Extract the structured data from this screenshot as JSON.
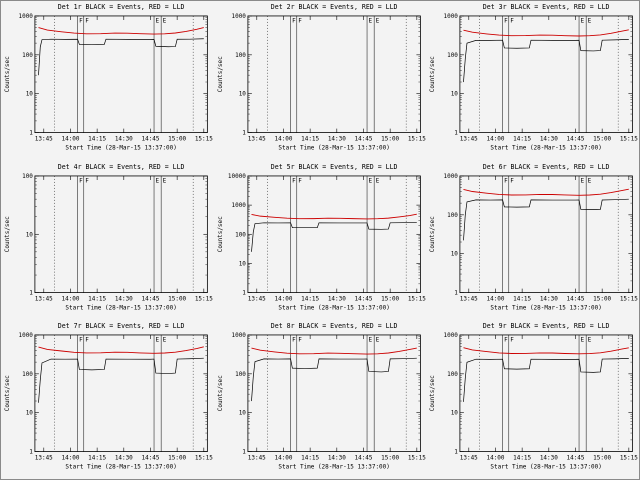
{
  "window": {
    "background": "#f3f3f3",
    "border": "#8a8a8a"
  },
  "colors": {
    "events": "#000000",
    "lld": "#cc0000",
    "axis": "#000000",
    "text": "#000000"
  },
  "chart_data": {
    "type": "line",
    "grid": [
      3,
      3
    ],
    "legend_note": "BLACK = Events, RED = LLD",
    "xlabel": "Start Time (28-Mar-15 13:37:00)",
    "ylabel": "Counts/sec",
    "xlim": [
      3,
      100
    ],
    "x_ticks": [
      {
        "m": 8,
        "l": "13:45"
      },
      {
        "m": 23,
        "l": "14:00"
      },
      {
        "m": 38,
        "l": "14:15"
      },
      {
        "m": 53,
        "l": "14:30"
      },
      {
        "m": 68,
        "l": "14:45"
      },
      {
        "m": 83,
        "l": "15:00"
      },
      {
        "m": 98,
        "l": "15:15"
      }
    ],
    "marker_lines": [
      {
        "m": 14,
        "style": "dotted",
        "label": ""
      },
      {
        "m": 27,
        "style": "solid",
        "label": "F"
      },
      {
        "m": 30.5,
        "style": "solid",
        "label": "F"
      },
      {
        "m": 70,
        "style": "solid",
        "label": "E"
      },
      {
        "m": 74,
        "style": "solid",
        "label": "E"
      },
      {
        "m": 92,
        "style": "dotted",
        "label": ""
      }
    ],
    "panels": [
      {
        "id": "det-1r",
        "title": "Det 1r BLACK = Events, RED = LLD",
        "ylim": [
          1,
          1000
        ],
        "yticks": [
          1,
          10,
          100,
          1000
        ],
        "events": [
          [
            5,
            30
          ],
          [
            6,
            160
          ],
          [
            7,
            245
          ],
          [
            12,
            252
          ],
          [
            20,
            249
          ],
          [
            27,
            251
          ],
          [
            28,
            186
          ],
          [
            35,
            184
          ],
          [
            42,
            186
          ],
          [
            43,
            252
          ],
          [
            55,
            250
          ],
          [
            68,
            248
          ],
          [
            70,
            250
          ],
          [
            71,
            166
          ],
          [
            78,
            161
          ],
          [
            82,
            163
          ],
          [
            83,
            251
          ],
          [
            90,
            253
          ],
          [
            98,
            259
          ]
        ],
        "lld": [
          [
            5,
            500
          ],
          [
            10,
            432
          ],
          [
            18,
            392
          ],
          [
            25,
            362
          ],
          [
            32,
            348
          ],
          [
            40,
            350
          ],
          [
            48,
            363
          ],
          [
            55,
            360
          ],
          [
            62,
            349
          ],
          [
            70,
            341
          ],
          [
            76,
            347
          ],
          [
            82,
            364
          ],
          [
            88,
            400
          ],
          [
            94,
            452
          ],
          [
            98,
            500
          ]
        ]
      },
      {
        "id": "det-2r",
        "title": "Det 2r BLACK = Events, RED = LLD",
        "ylim": [
          1,
          1000
        ],
        "yticks": [
          1,
          10,
          100,
          1000
        ],
        "events": [],
        "lld": []
      },
      {
        "id": "det-3r",
        "title": "Det 3r BLACK = Events, RED = LLD",
        "ylim": [
          1,
          1000
        ],
        "yticks": [
          1,
          10,
          100,
          1000
        ],
        "events": [
          [
            5,
            20
          ],
          [
            6,
            80
          ],
          [
            7,
            200
          ],
          [
            12,
            235
          ],
          [
            20,
            236
          ],
          [
            27,
            238
          ],
          [
            28,
            150
          ],
          [
            35,
            148
          ],
          [
            42,
            150
          ],
          [
            43,
            238
          ],
          [
            55,
            236
          ],
          [
            68,
            235
          ],
          [
            70,
            237
          ],
          [
            71,
            128
          ],
          [
            78,
            126
          ],
          [
            82,
            129
          ],
          [
            83,
            238
          ],
          [
            90,
            242
          ],
          [
            98,
            250
          ]
        ],
        "lld": [
          [
            5,
            430
          ],
          [
            10,
            382
          ],
          [
            18,
            345
          ],
          [
            25,
            322
          ],
          [
            32,
            310
          ],
          [
            40,
            312
          ],
          [
            48,
            322
          ],
          [
            55,
            320
          ],
          [
            62,
            311
          ],
          [
            70,
            305
          ],
          [
            76,
            310
          ],
          [
            82,
            326
          ],
          [
            88,
            358
          ],
          [
            94,
            405
          ],
          [
            98,
            440
          ]
        ]
      },
      {
        "id": "det-4r",
        "title": "Det 4r BLACK = Events, RED = LLD",
        "ylim": [
          1,
          100
        ],
        "yticks": [
          1,
          10,
          100
        ],
        "events": [],
        "lld": []
      },
      {
        "id": "det-5r",
        "title": "Det 5r BLACK = Events, RED = LLD",
        "ylim": [
          1,
          10000
        ],
        "yticks": [
          1,
          10,
          100,
          1000,
          10000
        ],
        "events": [
          [
            5,
            25
          ],
          [
            6,
            120
          ],
          [
            7,
            230
          ],
          [
            12,
            248
          ],
          [
            20,
            246
          ],
          [
            27,
            247
          ],
          [
            28,
            170
          ],
          [
            35,
            168
          ],
          [
            42,
            170
          ],
          [
            43,
            248
          ],
          [
            55,
            246
          ],
          [
            68,
            245
          ],
          [
            70,
            246
          ],
          [
            71,
            150
          ],
          [
            78,
            148
          ],
          [
            82,
            150
          ],
          [
            83,
            247
          ],
          [
            90,
            250
          ],
          [
            98,
            256
          ]
        ],
        "lld": [
          [
            5,
            480
          ],
          [
            10,
            420
          ],
          [
            18,
            382
          ],
          [
            25,
            355
          ],
          [
            32,
            342
          ],
          [
            40,
            344
          ],
          [
            48,
            356
          ],
          [
            55,
            353
          ],
          [
            62,
            343
          ],
          [
            70,
            336
          ],
          [
            76,
            341
          ],
          [
            82,
            357
          ],
          [
            88,
            392
          ],
          [
            94,
            440
          ],
          [
            98,
            485
          ]
        ]
      },
      {
        "id": "det-6r",
        "title": "Det 6r BLACK = Events, RED = LLD",
        "ylim": [
          1,
          1000
        ],
        "yticks": [
          1,
          10,
          100,
          1000
        ],
        "events": [
          [
            5,
            22
          ],
          [
            6,
            100
          ],
          [
            7,
            215
          ],
          [
            12,
            242
          ],
          [
            20,
            240
          ],
          [
            27,
            242
          ],
          [
            28,
            160
          ],
          [
            35,
            158
          ],
          [
            42,
            160
          ],
          [
            43,
            242
          ],
          [
            55,
            240
          ],
          [
            68,
            239
          ],
          [
            70,
            241
          ],
          [
            71,
            138
          ],
          [
            78,
            136
          ],
          [
            82,
            138
          ],
          [
            83,
            241
          ],
          [
            90,
            245
          ],
          [
            98,
            252
          ]
        ],
        "lld": [
          [
            5,
            450
          ],
          [
            10,
            398
          ],
          [
            18,
            360
          ],
          [
            25,
            336
          ],
          [
            32,
            324
          ],
          [
            40,
            326
          ],
          [
            48,
            336
          ],
          [
            55,
            334
          ],
          [
            62,
            325
          ],
          [
            70,
            318
          ],
          [
            76,
            323
          ],
          [
            82,
            339
          ],
          [
            88,
            372
          ],
          [
            94,
            420
          ],
          [
            98,
            455
          ]
        ]
      },
      {
        "id": "det-7r",
        "title": "Det 7r BLACK = Events, RED = LLD",
        "ylim": [
          1,
          1000
        ],
        "yticks": [
          1,
          10,
          100,
          1000
        ],
        "events": [
          [
            5,
            18
          ],
          [
            6,
            70
          ],
          [
            7,
            190
          ],
          [
            12,
            240
          ],
          [
            20,
            238
          ],
          [
            27,
            240
          ],
          [
            28,
            130
          ],
          [
            35,
            127
          ],
          [
            42,
            130
          ],
          [
            43,
            240
          ],
          [
            55,
            238
          ],
          [
            68,
            237
          ],
          [
            70,
            239
          ],
          [
            71,
            105
          ],
          [
            78,
            102
          ],
          [
            82,
            105
          ],
          [
            83,
            240
          ],
          [
            90,
            244
          ],
          [
            98,
            252
          ]
        ],
        "lld": [
          [
            5,
            490
          ],
          [
            10,
            425
          ],
          [
            18,
            386
          ],
          [
            25,
            358
          ],
          [
            32,
            345
          ],
          [
            40,
            347
          ],
          [
            48,
            360
          ],
          [
            55,
            357
          ],
          [
            62,
            346
          ],
          [
            70,
            338
          ],
          [
            76,
            344
          ],
          [
            82,
            360
          ],
          [
            88,
            396
          ],
          [
            94,
            448
          ],
          [
            98,
            495
          ]
        ]
      },
      {
        "id": "det-8r",
        "title": "Det 8r BLACK = Events, RED = LLD",
        "ylim": [
          1,
          1000
        ],
        "yticks": [
          1,
          10,
          100,
          1000
        ],
        "events": [
          [
            5,
            20
          ],
          [
            6,
            85
          ],
          [
            7,
            205
          ],
          [
            12,
            242
          ],
          [
            20,
            240
          ],
          [
            27,
            242
          ],
          [
            28,
            140
          ],
          [
            35,
            137
          ],
          [
            42,
            140
          ],
          [
            43,
            242
          ],
          [
            55,
            240
          ],
          [
            68,
            239
          ],
          [
            70,
            241
          ],
          [
            71,
            115
          ],
          [
            78,
            112
          ],
          [
            82,
            115
          ],
          [
            83,
            242
          ],
          [
            90,
            246
          ],
          [
            98,
            253
          ]
        ],
        "lld": [
          [
            5,
            460
          ],
          [
            10,
            405
          ],
          [
            18,
            366
          ],
          [
            25,
            340
          ],
          [
            32,
            328
          ],
          [
            40,
            330
          ],
          [
            48,
            341
          ],
          [
            55,
            338
          ],
          [
            62,
            329
          ],
          [
            70,
            322
          ],
          [
            76,
            327
          ],
          [
            82,
            343
          ],
          [
            88,
            377
          ],
          [
            94,
            426
          ],
          [
            98,
            462
          ]
        ]
      },
      {
        "id": "det-9r",
        "title": "Det 9r BLACK = Events, RED = LLD",
        "ylim": [
          1,
          1000
        ],
        "yticks": [
          1,
          10,
          100,
          1000
        ],
        "events": [
          [
            5,
            19
          ],
          [
            6,
            78
          ],
          [
            7,
            198
          ],
          [
            12,
            238
          ],
          [
            20,
            236
          ],
          [
            27,
            238
          ],
          [
            28,
            135
          ],
          [
            35,
            132
          ],
          [
            42,
            135
          ],
          [
            43,
            238
          ],
          [
            55,
            236
          ],
          [
            68,
            235
          ],
          [
            70,
            237
          ],
          [
            71,
            112
          ],
          [
            78,
            109
          ],
          [
            82,
            112
          ],
          [
            83,
            239
          ],
          [
            90,
            243
          ],
          [
            98,
            250
          ]
        ],
        "lld": [
          [
            5,
            470
          ],
          [
            10,
            412
          ],
          [
            18,
            372
          ],
          [
            25,
            346
          ],
          [
            32,
            333
          ],
          [
            40,
            335
          ],
          [
            48,
            346
          ],
          [
            55,
            343
          ],
          [
            62,
            334
          ],
          [
            70,
            327
          ],
          [
            76,
            332
          ],
          [
            82,
            348
          ],
          [
            88,
            382
          ],
          [
            94,
            432
          ],
          [
            98,
            468
          ]
        ]
      }
    ]
  }
}
